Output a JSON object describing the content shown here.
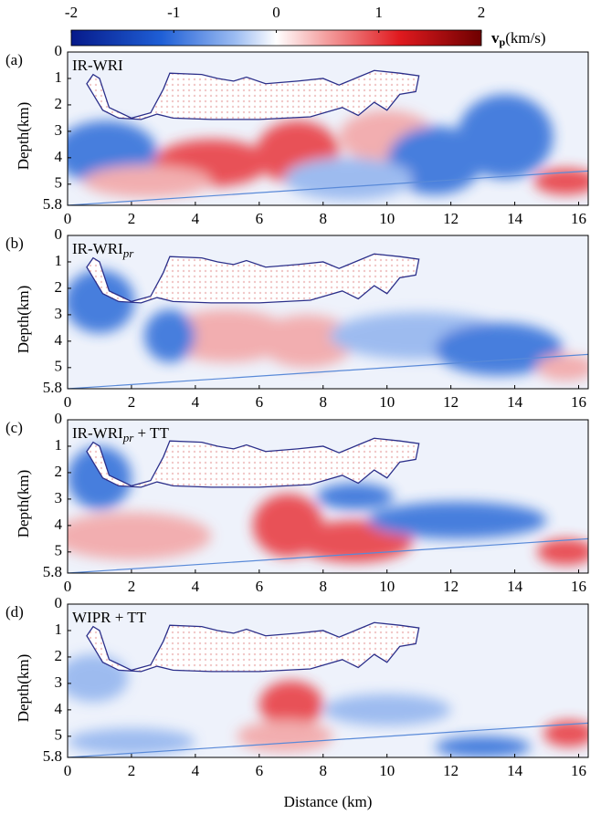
{
  "colorbar": {
    "lim": [
      -2,
      2
    ],
    "ticks": [
      -2,
      -1,
      0,
      1,
      2
    ],
    "label_main": "v",
    "label_sub": "p",
    "label_unit": "(km/s)"
  },
  "xlabel": "Distance (km)",
  "chart_data": [
    {
      "type": "heatmap",
      "panel_label": "(a)",
      "title": "IR-WRI",
      "ylabel": "Depth(km)",
      "xlim": [
        0,
        16.3
      ],
      "ylim": [
        0,
        5.8
      ],
      "xticks": [
        0,
        2,
        4,
        6,
        8,
        10,
        12,
        14,
        16
      ],
      "yticks": [
        0,
        1,
        2,
        3,
        4,
        5,
        5.8
      ]
    },
    {
      "type": "heatmap",
      "panel_label": "(b)",
      "title": "IR-WRI",
      "title_sub": "pr",
      "ylabel": "Depth(km)",
      "xlim": [
        0,
        16.3
      ],
      "ylim": [
        0,
        5.8
      ],
      "xticks": [
        0,
        2,
        4,
        6,
        8,
        10,
        12,
        14,
        16
      ],
      "yticks": [
        0,
        1,
        2,
        3,
        4,
        5,
        5.8
      ]
    },
    {
      "type": "heatmap",
      "panel_label": "(c)",
      "title": "IR-WRI",
      "title_sub": "pr",
      "title_suffix": " + TT",
      "ylabel": "Depth(km)",
      "xlim": [
        0,
        16.3
      ],
      "ylim": [
        0,
        5.8
      ],
      "xticks": [
        0,
        2,
        4,
        6,
        8,
        10,
        12,
        14,
        16
      ],
      "yticks": [
        0,
        1,
        2,
        3,
        4,
        5,
        5.8
      ]
    },
    {
      "type": "heatmap",
      "panel_label": "(d)",
      "title": "WIPR + TT",
      "ylabel": "Depth(km)",
      "xlim": [
        0,
        16.3
      ],
      "ylim": [
        0,
        5.8
      ],
      "xticks": [
        0,
        2,
        4,
        6,
        8,
        10,
        12,
        14,
        16
      ],
      "yticks": [
        0,
        1,
        2,
        3,
        4,
        5,
        5.8
      ]
    }
  ]
}
